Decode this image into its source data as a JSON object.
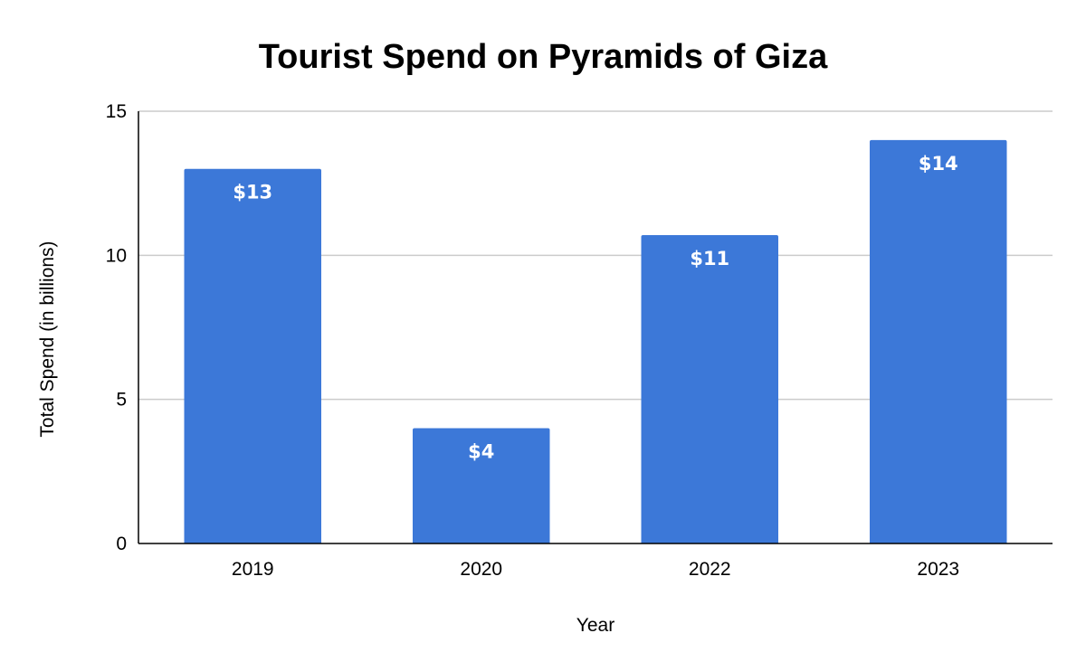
{
  "chart_data": {
    "type": "bar",
    "title": "Tourist Spend on Pyramids of Giza",
    "xlabel": "Year",
    "ylabel": "Total Spend (in billions)",
    "categories": [
      "2019",
      "2020",
      "2022",
      "2023"
    ],
    "values": [
      13,
      4,
      10.7,
      14
    ],
    "data_labels": [
      "$13",
      "$4",
      "$11",
      "$14"
    ],
    "ylim": [
      0,
      15
    ],
    "yticks": [
      0,
      5,
      10,
      15
    ],
    "ytick_labels": [
      "0",
      "5",
      "10",
      "15"
    ],
    "grid": true,
    "legend": "none",
    "bar_color": "#3c78d8",
    "grid_color": "#cccccc",
    "axis_color": "#000000"
  }
}
